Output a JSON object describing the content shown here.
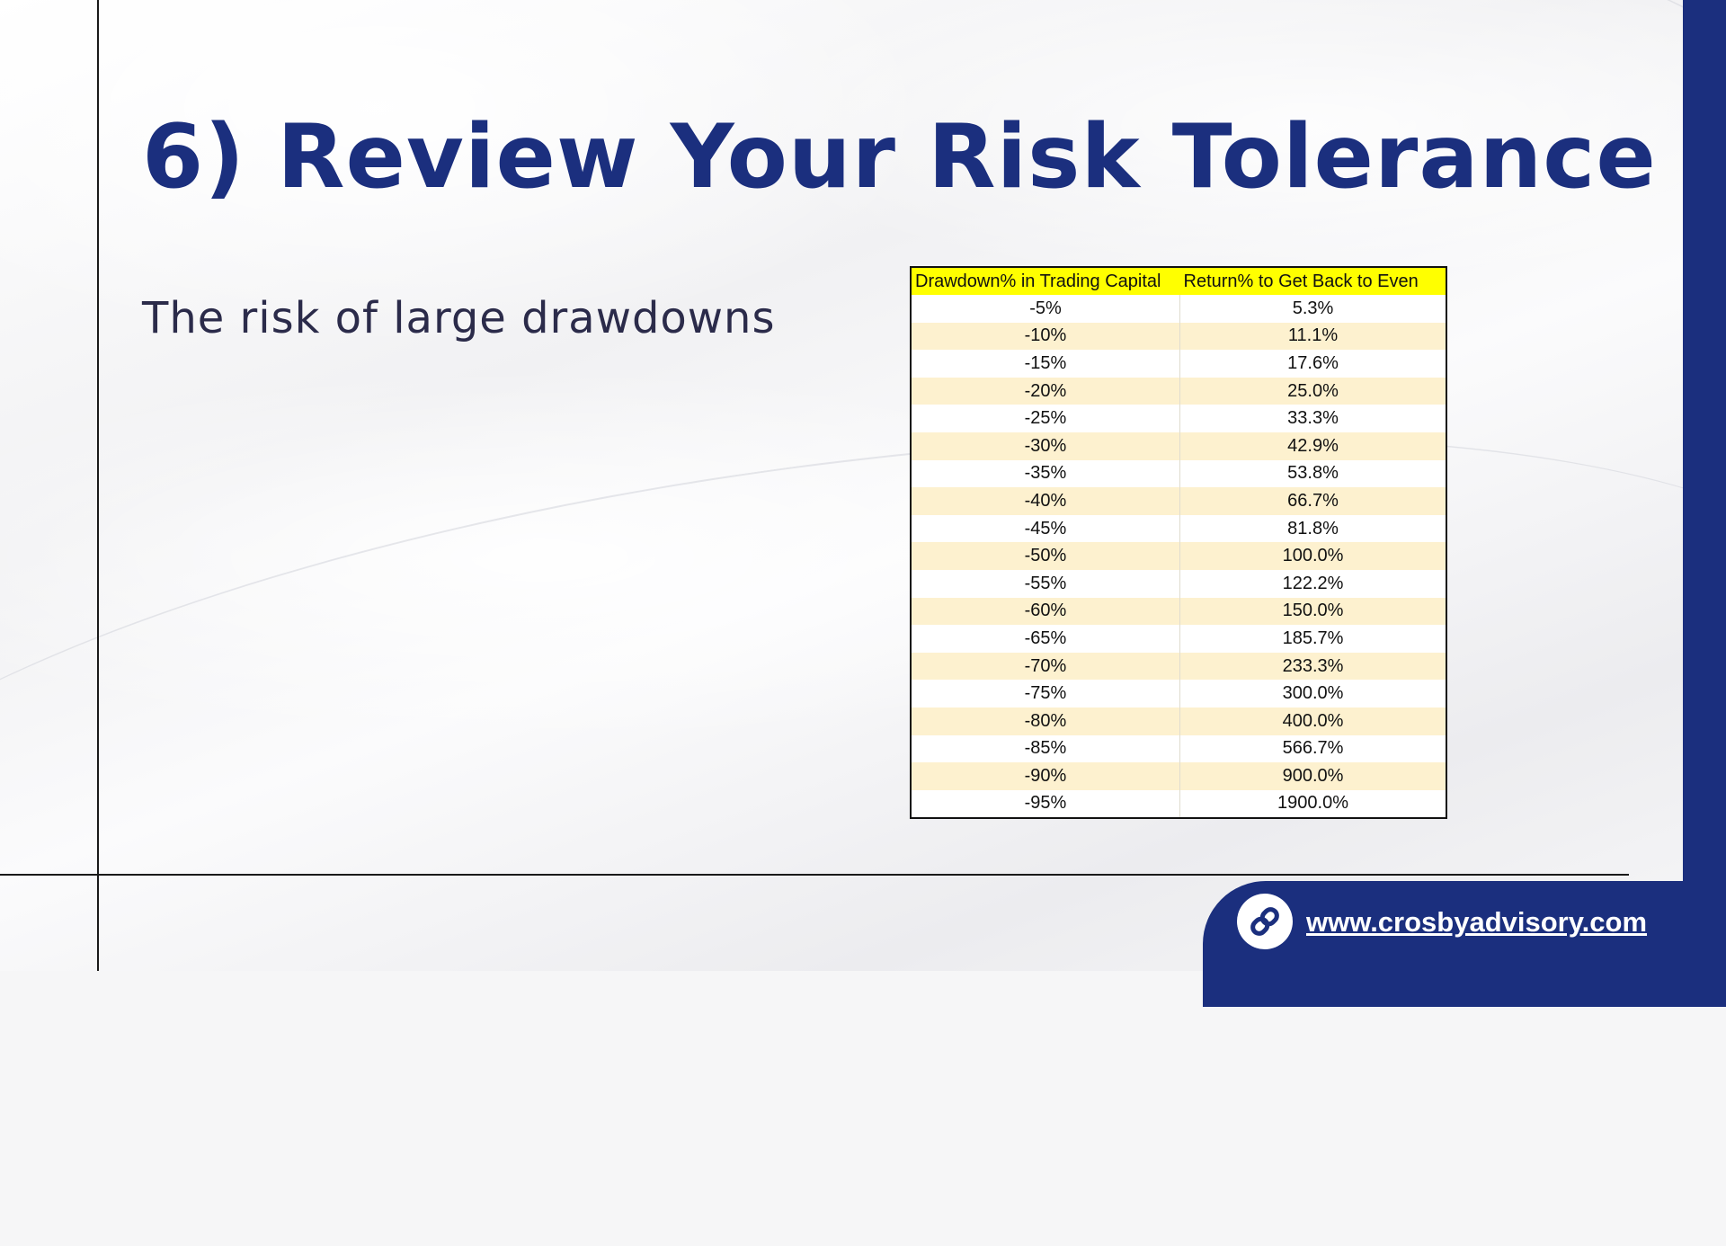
{
  "slide": {
    "title": "6) Review Your Risk Tolerance",
    "subtitle": "The risk of large drawdowns"
  },
  "table": {
    "headers": [
      "Drawdown% in Trading Capital",
      "Return% to Get Back to Even"
    ],
    "rows": [
      [
        "-5%",
        "5.3%"
      ],
      [
        "-10%",
        "11.1%"
      ],
      [
        "-15%",
        "17.6%"
      ],
      [
        "-20%",
        "25.0%"
      ],
      [
        "-25%",
        "33.3%"
      ],
      [
        "-30%",
        "42.9%"
      ],
      [
        "-35%",
        "53.8%"
      ],
      [
        "-40%",
        "66.7%"
      ],
      [
        "-45%",
        "81.8%"
      ],
      [
        "-50%",
        "100.0%"
      ],
      [
        "-55%",
        "122.2%"
      ],
      [
        "-60%",
        "150.0%"
      ],
      [
        "-65%",
        "185.7%"
      ],
      [
        "-70%",
        "233.3%"
      ],
      [
        "-75%",
        "300.0%"
      ],
      [
        "-80%",
        "400.0%"
      ],
      [
        "-85%",
        "566.7%"
      ],
      [
        "-90%",
        "900.0%"
      ],
      [
        "-95%",
        "1900.0%"
      ]
    ]
  },
  "footer": {
    "website": "www.crosbyadvisory.com",
    "icon": "link-icon"
  },
  "colors": {
    "brand_navy": "#1b2f7e",
    "header_yellow": "#ffff00",
    "row_stripe": "#fdf1cf"
  }
}
